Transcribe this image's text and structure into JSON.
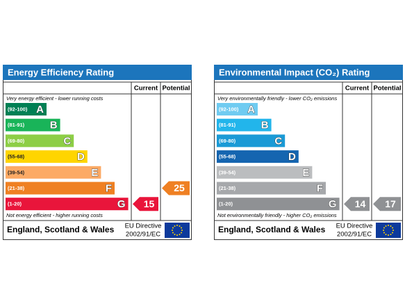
{
  "panels": [
    {
      "title": "Energy Efficiency Rating",
      "columns": [
        "Current",
        "Potential"
      ],
      "top_note": "Very energy efficient - lower running costs",
      "bands": [
        {
          "range": "(92-100)",
          "letter": "A",
          "color": "#008054"
        },
        {
          "range": "(81-91)",
          "letter": "B",
          "color": "#19b459"
        },
        {
          "range": "(69-80)",
          "letter": "C",
          "color": "#8dce46"
        },
        {
          "range": "(55-68)",
          "letter": "D",
          "color": "#ffd500"
        },
        {
          "range": "(39-54)",
          "letter": "E",
          "color": "#fcaa65"
        },
        {
          "range": "(21-38)",
          "letter": "F",
          "color": "#ef8023"
        },
        {
          "range": "(1-20)",
          "letter": "G",
          "color": "#e9153b"
        }
      ],
      "bottom_note": "Not energy efficient - higher running costs",
      "current": 15,
      "potential": 25,
      "footer": "England, Scotland & Wales",
      "directive": [
        "EU Directive",
        "2002/91/EC"
      ]
    },
    {
      "title": "Environmental Impact (CO₂) Rating",
      "columns": [
        "Current",
        "Potential"
      ],
      "top_note": "Very environmentally friendly - lower CO₂ emissions",
      "bands": [
        {
          "range": "(92-100)",
          "letter": "A",
          "color": "#6fcbf1"
        },
        {
          "range": "(81-91)",
          "letter": "B",
          "color": "#22b5eb"
        },
        {
          "range": "(69-80)",
          "letter": "C",
          "color": "#1a9ad6"
        },
        {
          "range": "(55-68)",
          "letter": "D",
          "color": "#1565b0"
        },
        {
          "range": "(39-54)",
          "letter": "E",
          "color": "#bbbdbf"
        },
        {
          "range": "(21-38)",
          "letter": "F",
          "color": "#a6a8ab"
        },
        {
          "range": "(1-20)",
          "letter": "G",
          "color": "#8f9194"
        }
      ],
      "bottom_note": "Not environmentally friendly - higher CO₂ emissions",
      "current": 14,
      "potential": 17,
      "footer": "England, Scotland & Wales",
      "directive": [
        "EU Directive",
        "2002/91/EC"
      ]
    }
  ]
}
